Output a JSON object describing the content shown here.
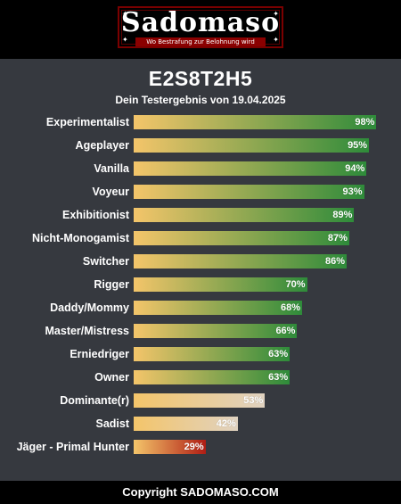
{
  "logo": {
    "text": "Sadomaso",
    "tagline": "Wo Bestrafung zur Belohnung wird"
  },
  "result": {
    "title": "E2S8T2H5",
    "subtitle": "Dein Testergebnis von 19.04.2025"
  },
  "footer": {
    "copyright": "Copyright SADOMASO.COM"
  },
  "colors": {
    "high_end": "#2e8b3a",
    "mid_end": "#e0d2c0",
    "low_end": "#b01d14",
    "start": "#f4c56a"
  },
  "chart_data": {
    "type": "bar",
    "orientation": "horizontal",
    "title": "E2S8T2H5",
    "subtitle": "Dein Testergebnis von 19.04.2025",
    "xlim": [
      0,
      100
    ],
    "categories": [
      "Experimentalist",
      "Ageplayer",
      "Vanilla",
      "Voyeur",
      "Exhibitionist",
      "Nicht-Monogamist",
      "Switcher",
      "Rigger",
      "Daddy/Mommy",
      "Master/Mistress",
      "Erniedriger",
      "Owner",
      "Dominante(r)",
      "Sadist",
      "Jäger - Primal Hunter"
    ],
    "values": [
      98,
      95,
      94,
      93,
      89,
      87,
      86,
      70,
      68,
      66,
      63,
      63,
      53,
      42,
      29
    ],
    "value_labels": [
      "98%",
      "95%",
      "94%",
      "93%",
      "89%",
      "87%",
      "86%",
      "70%",
      "68%",
      "66%",
      "63%",
      "63%",
      "53%",
      "42%",
      "29%"
    ]
  }
}
